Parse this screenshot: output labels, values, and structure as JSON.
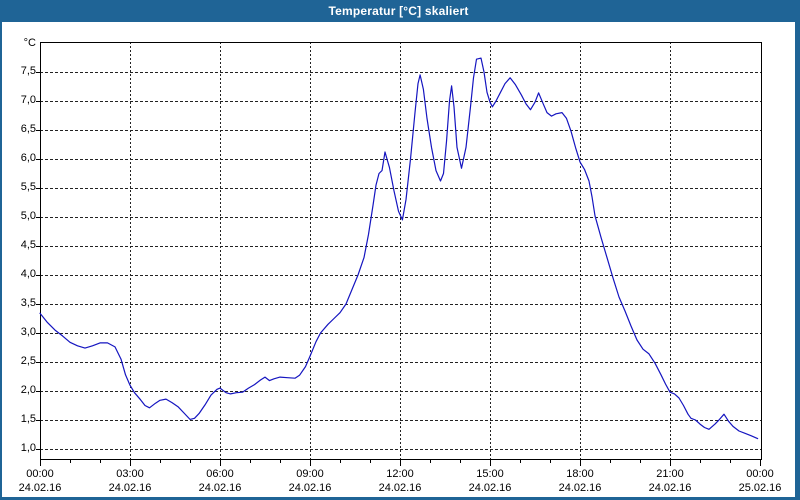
{
  "window": {
    "title": "Temperatur [°C] skaliert",
    "titlebar_color": "#1f6496",
    "frame_color": "#1f6496"
  },
  "chart_data": {
    "type": "line",
    "title": "Temperatur [°C] skaliert",
    "y_unit_label": "°C",
    "ylabel": "",
    "xlabel": "",
    "ylim": [
      0.79,
      8.02
    ],
    "xlim_hours": [
      0,
      24.07
    ],
    "grid": "dashed black, horizontal every 0.5 °C, vertical every 3 h",
    "legend": "none",
    "line_color": "#1515c0",
    "y_ticks": [
      7.5,
      7.0,
      6.5,
      6.0,
      5.5,
      5.0,
      4.5,
      4.0,
      3.5,
      3.0,
      2.5,
      2.0,
      1.5,
      1.0
    ],
    "y_tick_labels": [
      "7,5",
      "7,0",
      "6,5",
      "6,0",
      "5,5",
      "5,0",
      "4,5",
      "4,0",
      "3,5",
      "3,0",
      "2,5",
      "2,0",
      "1,5",
      "1,0"
    ],
    "x_major_ticks": [
      {
        "hour": 0,
        "time": "00:00",
        "date": "24.02.16"
      },
      {
        "hour": 3,
        "time": "03:00",
        "date": "24.02.16"
      },
      {
        "hour": 6,
        "time": "06:00",
        "date": "24.02.16"
      },
      {
        "hour": 9,
        "time": "09:00",
        "date": "24.02.16"
      },
      {
        "hour": 12,
        "time": "12:00",
        "date": "24.02.16"
      },
      {
        "hour": 15,
        "time": "15:00",
        "date": "24.02.16"
      },
      {
        "hour": 18,
        "time": "18:00",
        "date": "24.02.16"
      },
      {
        "hour": 21,
        "time": "21:00",
        "date": "24.02.16"
      },
      {
        "hour": 24,
        "time": "00:00",
        "date": "25.02.16"
      }
    ],
    "x_minor_tick_every_hours": 1,
    "series": [
      {
        "name": "Temperatur",
        "unit": "°C",
        "points": [
          [
            0,
            3.34
          ],
          [
            0.25,
            3.18
          ],
          [
            0.5,
            3.05
          ],
          [
            0.75,
            2.95
          ],
          [
            1,
            2.84
          ],
          [
            1.25,
            2.78
          ],
          [
            1.5,
            2.74
          ],
          [
            1.75,
            2.78
          ],
          [
            2,
            2.83
          ],
          [
            2.25,
            2.83
          ],
          [
            2.5,
            2.76
          ],
          [
            2.7,
            2.55
          ],
          [
            2.85,
            2.28
          ],
          [
            3,
            2.1
          ],
          [
            3.15,
            1.97
          ],
          [
            3.35,
            1.85
          ],
          [
            3.5,
            1.75
          ],
          [
            3.65,
            1.71
          ],
          [
            3.85,
            1.79
          ],
          [
            4,
            1.84
          ],
          [
            4.2,
            1.86
          ],
          [
            4.4,
            1.8
          ],
          [
            4.6,
            1.73
          ],
          [
            4.8,
            1.62
          ],
          [
            5,
            1.51
          ],
          [
            5.15,
            1.53
          ],
          [
            5.3,
            1.61
          ],
          [
            5.5,
            1.76
          ],
          [
            5.7,
            1.93
          ],
          [
            5.9,
            2.03
          ],
          [
            6,
            2.05
          ],
          [
            6.2,
            1.97
          ],
          [
            6.35,
            1.95
          ],
          [
            6.55,
            1.97
          ],
          [
            6.75,
            1.98
          ],
          [
            6.95,
            2.05
          ],
          [
            7.15,
            2.11
          ],
          [
            7.35,
            2.19
          ],
          [
            7.5,
            2.24
          ],
          [
            7.65,
            2.18
          ],
          [
            7.8,
            2.21
          ],
          [
            8,
            2.24
          ],
          [
            8.25,
            2.23
          ],
          [
            8.5,
            2.22
          ],
          [
            8.65,
            2.27
          ],
          [
            8.85,
            2.42
          ],
          [
            9,
            2.6
          ],
          [
            9.2,
            2.85
          ],
          [
            9.35,
            3.0
          ],
          [
            9.6,
            3.15
          ],
          [
            9.8,
            3.25
          ],
          [
            10,
            3.35
          ],
          [
            10.2,
            3.5
          ],
          [
            10.4,
            3.75
          ],
          [
            10.6,
            4.0
          ],
          [
            10.8,
            4.3
          ],
          [
            10.95,
            4.7
          ],
          [
            11.1,
            5.2
          ],
          [
            11.2,
            5.55
          ],
          [
            11.3,
            5.75
          ],
          [
            11.4,
            5.8
          ],
          [
            11.5,
            6.12
          ],
          [
            11.65,
            5.85
          ],
          [
            11.8,
            5.45
          ],
          [
            11.95,
            5.1
          ],
          [
            12.08,
            4.95
          ],
          [
            12.2,
            5.3
          ],
          [
            12.35,
            6.0
          ],
          [
            12.5,
            6.8
          ],
          [
            12.6,
            7.3
          ],
          [
            12.67,
            7.45
          ],
          [
            12.78,
            7.2
          ],
          [
            12.9,
            6.7
          ],
          [
            13.05,
            6.2
          ],
          [
            13.2,
            5.8
          ],
          [
            13.35,
            5.62
          ],
          [
            13.45,
            5.75
          ],
          [
            13.55,
            6.3
          ],
          [
            13.65,
            7.0
          ],
          [
            13.72,
            7.26
          ],
          [
            13.8,
            6.9
          ],
          [
            13.9,
            6.2
          ],
          [
            14.05,
            5.84
          ],
          [
            14.2,
            6.2
          ],
          [
            14.35,
            6.9
          ],
          [
            14.45,
            7.4
          ],
          [
            14.55,
            7.72
          ],
          [
            14.7,
            7.74
          ],
          [
            14.8,
            7.5
          ],
          [
            14.9,
            7.15
          ],
          [
            15,
            6.98
          ],
          [
            15.08,
            6.9
          ],
          [
            15.2,
            7.0
          ],
          [
            15.35,
            7.15
          ],
          [
            15.5,
            7.3
          ],
          [
            15.67,
            7.4
          ],
          [
            15.85,
            7.28
          ],
          [
            16.05,
            7.1
          ],
          [
            16.2,
            6.95
          ],
          [
            16.35,
            6.85
          ],
          [
            16.5,
            6.98
          ],
          [
            16.62,
            7.14
          ],
          [
            16.75,
            6.98
          ],
          [
            16.9,
            6.8
          ],
          [
            17.05,
            6.74
          ],
          [
            17.2,
            6.78
          ],
          [
            17.4,
            6.8
          ],
          [
            17.55,
            6.7
          ],
          [
            17.7,
            6.48
          ],
          [
            17.85,
            6.2
          ],
          [
            18,
            5.95
          ],
          [
            18.15,
            5.82
          ],
          [
            18.3,
            5.62
          ],
          [
            18.4,
            5.35
          ],
          [
            18.5,
            5.02
          ],
          [
            18.7,
            4.65
          ],
          [
            18.9,
            4.3
          ],
          [
            19.1,
            3.95
          ],
          [
            19.3,
            3.62
          ],
          [
            19.5,
            3.38
          ],
          [
            19.7,
            3.12
          ],
          [
            19.9,
            2.88
          ],
          [
            20.1,
            2.72
          ],
          [
            20.3,
            2.64
          ],
          [
            20.5,
            2.48
          ],
          [
            20.7,
            2.28
          ],
          [
            20.85,
            2.12
          ],
          [
            21,
            1.98
          ],
          [
            21.15,
            1.95
          ],
          [
            21.3,
            1.88
          ],
          [
            21.45,
            1.75
          ],
          [
            21.6,
            1.6
          ],
          [
            21.7,
            1.53
          ],
          [
            21.85,
            1.5
          ],
          [
            22,
            1.43
          ],
          [
            22.15,
            1.37
          ],
          [
            22.3,
            1.34
          ],
          [
            22.5,
            1.43
          ],
          [
            22.65,
            1.51
          ],
          [
            22.8,
            1.6
          ],
          [
            22.95,
            1.48
          ],
          [
            23.1,
            1.39
          ],
          [
            23.3,
            1.31
          ],
          [
            23.5,
            1.27
          ],
          [
            23.7,
            1.23
          ],
          [
            23.92,
            1.18
          ]
        ]
      }
    ]
  }
}
